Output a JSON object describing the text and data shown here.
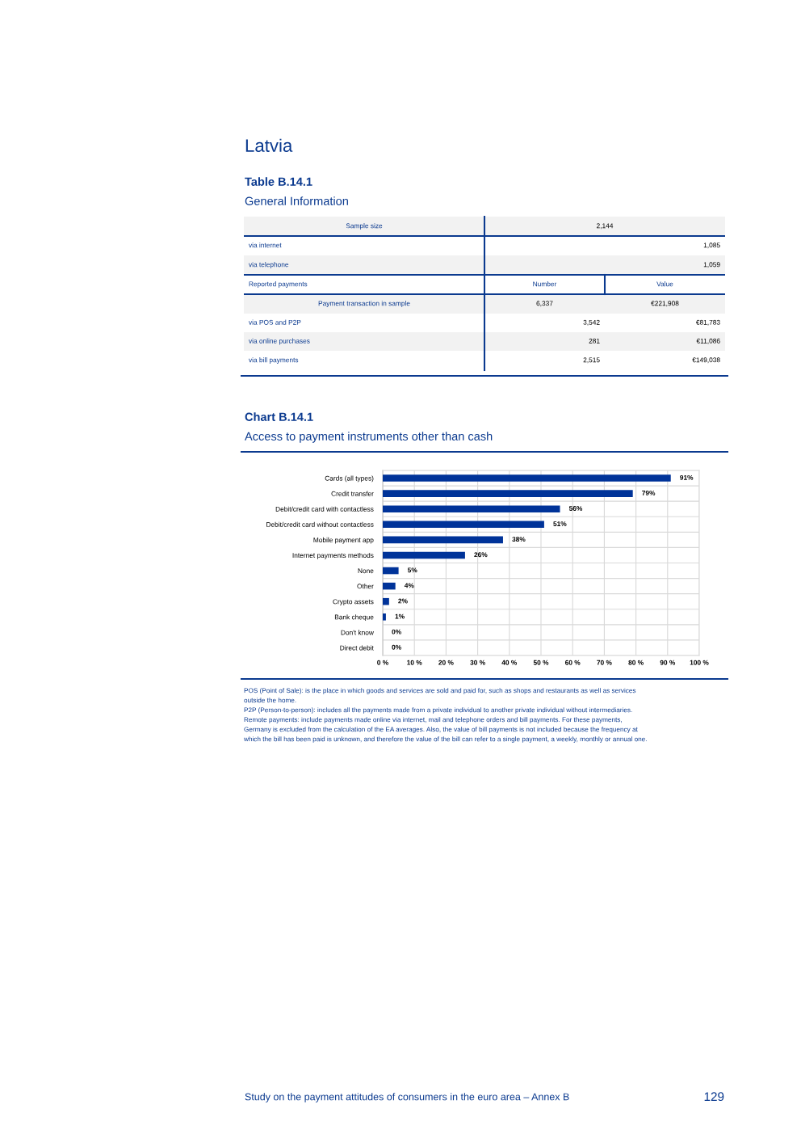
{
  "chart_data": [
    {
      "type": "other",
      "title": "Table B.14.1",
      "subtitle": "General Information",
      "annotations": [
        "Latvia",
        "Sample size",
        "2,144",
        "via internet",
        "1,085",
        "via telephone",
        "1,059",
        "Reported payments",
        "Number",
        "Value",
        "Payment transaction in sample",
        "6,337",
        "€221,908",
        "via POS and P2P",
        "3,542",
        "€81,783",
        "via online purchases",
        "281",
        "€11,086",
        "via bill payments",
        "2,515",
        "€149,038"
      ]
    },
    {
      "type": "bar",
      "orientation": "horizontal",
      "title": "Chart B.14.1",
      "subtitle": "Access to payment instruments other than cash",
      "categories": [
        "Cards (all types)",
        "Credit transfer",
        "Debit/credit card with contactless",
        "Debit/credit card without contactless",
        "Mobile payment app",
        "Internet payments methods",
        "None",
        "Other",
        "Crypto assets",
        "Bank cheque",
        "Don't know",
        "Direct debit"
      ],
      "values": [
        91,
        79,
        56,
        51,
        38,
        26,
        5,
        4,
        2,
        1,
        0,
        0
      ],
      "value_labels": [
        "91%",
        "79%",
        "56%",
        "51%",
        "38%",
        "26%",
        "5%",
        "4%",
        "2%",
        "1%",
        "0%",
        "0%"
      ],
      "color": "#003399",
      "xlim": [
        0,
        100
      ],
      "xticks": [
        {
          "value": 0,
          "label": "0 %"
        },
        {
          "value": 10,
          "label": "10 %"
        },
        {
          "value": 20,
          "label": "20 %"
        },
        {
          "value": 30,
          "label": "30 %"
        },
        {
          "value": 40,
          "label": "40 %"
        },
        {
          "value": 50,
          "label": "50 %"
        },
        {
          "value": 60,
          "label": "60 %"
        },
        {
          "value": 70,
          "label": "70 %"
        },
        {
          "value": 80,
          "label": "80 %"
        },
        {
          "value": 90,
          "label": "90 %"
        },
        {
          "value": 100,
          "label": "100 %"
        }
      ],
      "grid": true,
      "annotations": [
        "POS (Point of Sale): is the place in which goods and services are sold and paid for, such as shops and restaurants as well as services",
        "outside the home.",
        "P2P (Person-to-person): includes all the payments made from a private individual to another private individual without intermediaries.",
        "Remote payments: include payments made online via internet, mail and telephone orders and bill payments. For these payments,",
        "Germany is excluded from the calculation of the EA averages. Also, the value of bill payments is not included because the frequency at",
        "which the bill has been paid is unknown, and therefore the value of the bill can refer to a single payment, a weekly, monthly or annual one.",
        "Study on the payment attitudes of consumers in the euro area – Annex B",
        "129"
      ]
    }
  ]
}
